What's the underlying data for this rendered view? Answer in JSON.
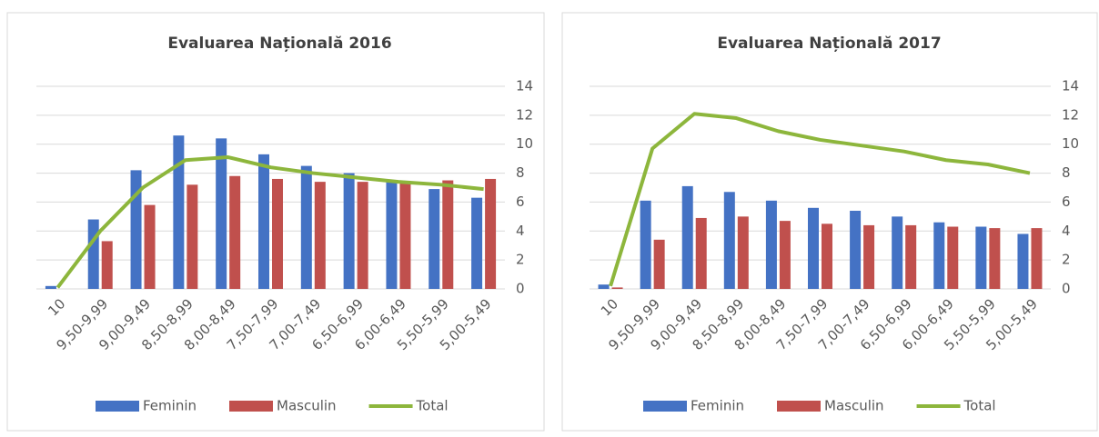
{
  "chart_data": [
    {
      "type": "bar",
      "title": "Evaluarea Națională 2016",
      "categories": [
        "10",
        "9,50-9,99",
        "9,00-9,49",
        "8,50-8,99",
        "8,00-8,49",
        "7,50-7,99",
        "7,00-7,49",
        "6,50-6,99",
        "6,00-6,49",
        "5,50-5,99",
        "5,00-5,49"
      ],
      "series": [
        {
          "name": "Feminin",
          "color": "#4472c4",
          "type": "bar",
          "values": [
            0.2,
            4.8,
            8.2,
            10.6,
            10.4,
            9.3,
            8.5,
            8.0,
            7.5,
            6.9,
            6.3
          ]
        },
        {
          "name": "Masculin",
          "color": "#c0504d",
          "type": "bar",
          "values": [
            0.0,
            3.3,
            5.8,
            7.2,
            7.8,
            7.6,
            7.4,
            7.4,
            7.3,
            7.5,
            7.6
          ]
        },
        {
          "name": "Total",
          "color": "#8db63c",
          "type": "line",
          "values": [
            0.1,
            4.0,
            7.0,
            8.9,
            9.1,
            8.4,
            8.0,
            7.7,
            7.4,
            7.2,
            6.9
          ]
        }
      ],
      "ylim": [
        0,
        14
      ],
      "yticks": [
        0,
        2,
        4,
        6,
        8,
        10,
        12,
        14
      ],
      "grid": true,
      "legend": "bottom"
    },
    {
      "type": "bar",
      "title": "Evaluarea Națională 2017",
      "categories": [
        "10",
        "9,50-9,99",
        "9,00-9,49",
        "8,50-8,99",
        "8,00-8,49",
        "7,50-7,99",
        "7,00-7,49",
        "6,50-6,99",
        "6,00-6,49",
        "5,50-5,99",
        "5,00-5,49"
      ],
      "series": [
        {
          "name": "Feminin",
          "color": "#4472c4",
          "type": "bar",
          "values": [
            0.3,
            6.1,
            7.1,
            6.7,
            6.1,
            5.6,
            5.4,
            5.0,
            4.6,
            4.3,
            3.8
          ]
        },
        {
          "name": "Masculin",
          "color": "#c0504d",
          "type": "bar",
          "values": [
            0.1,
            3.4,
            4.9,
            5.0,
            4.7,
            4.5,
            4.4,
            4.4,
            4.3,
            4.2,
            4.2
          ]
        },
        {
          "name": "Total",
          "color": "#8db63c",
          "type": "line",
          "values": [
            0.2,
            9.7,
            12.1,
            11.8,
            10.9,
            10.3,
            9.9,
            9.5,
            8.9,
            8.6,
            8.0
          ]
        }
      ],
      "ylim": [
        0,
        14
      ],
      "yticks": [
        0,
        2,
        4,
        6,
        8,
        10,
        12,
        14
      ],
      "grid": true,
      "legend": "bottom"
    }
  ]
}
